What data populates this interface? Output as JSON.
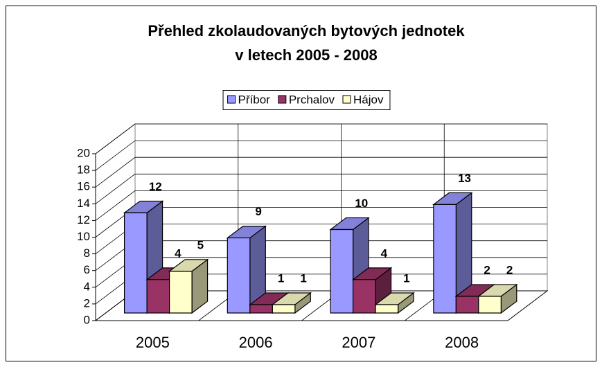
{
  "chart_data": {
    "type": "bar3d",
    "title": [
      "Přehled zkolaudovaných bytových jednotek",
      "v letech 2005 - 2008"
    ],
    "categories": [
      "2005",
      "2006",
      "2007",
      "2008"
    ],
    "series": [
      {
        "name": "Příbor",
        "color": "#9999ff",
        "values": [
          12,
          9,
          10,
          13
        ]
      },
      {
        "name": "Prchalov",
        "color": "#993366",
        "values": [
          4,
          1,
          4,
          2
        ]
      },
      {
        "name": "Hájov",
        "color": "#ffffcc",
        "values": [
          5,
          1,
          1,
          2
        ]
      }
    ],
    "ylim": [
      0,
      20
    ],
    "yticks": [
      0,
      2,
      4,
      6,
      8,
      10,
      12,
      14,
      16,
      18,
      20
    ],
    "grid": true,
    "legend": "top"
  }
}
